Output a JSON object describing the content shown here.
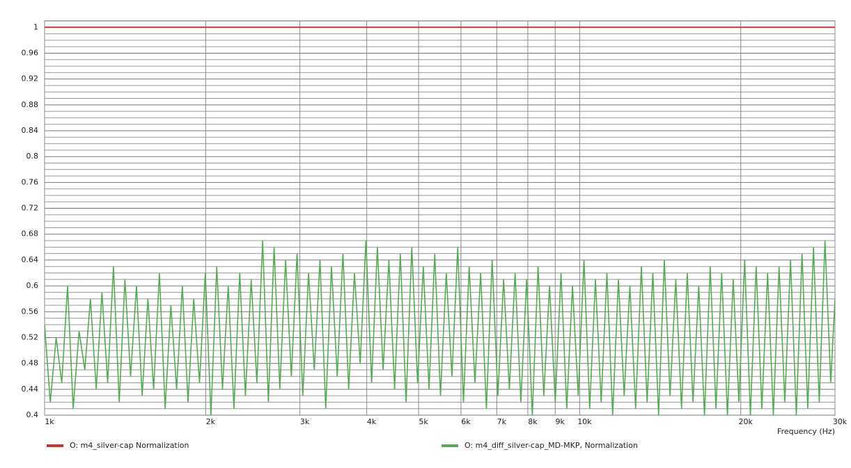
{
  "chart_data": {
    "type": "line",
    "x_label": "Frequency  (Hz)",
    "x_log": true,
    "grid": true,
    "legend": "bottom",
    "xlim": [
      1000,
      30000
    ],
    "ylim": [
      0.4,
      1.01
    ],
    "xticks": [
      {
        "value": 1000,
        "label": "1k"
      },
      {
        "value": 2000,
        "label": "2k"
      },
      {
        "value": 3000,
        "label": "3k"
      },
      {
        "value": 4000,
        "label": "4k"
      },
      {
        "value": 5000,
        "label": "5k"
      },
      {
        "value": 6000,
        "label": "6k"
      },
      {
        "value": 7000,
        "label": "7k"
      },
      {
        "value": 8000,
        "label": "8k"
      },
      {
        "value": 9000,
        "label": "9k"
      },
      {
        "value": 10000,
        "label": "10k"
      },
      {
        "value": 20000,
        "label": "20k"
      },
      {
        "value": 30000,
        "label": "30k"
      }
    ],
    "yticks": [
      0.4,
      0.44,
      0.48,
      0.52,
      0.56,
      0.6,
      0.64,
      0.68,
      0.72,
      0.76,
      0.8,
      0.84,
      0.88,
      0.92,
      0.96,
      1
    ],
    "series": [
      {
        "name": "O: m4_silver-cap Normalization",
        "color": "#cc3333",
        "x": [
          1000,
          30000
        ],
        "values": [
          1,
          1
        ]
      },
      {
        "name": "O: m4_diff_silver-cap_MD-MKP, Normalization",
        "color": "#55aa55",
        "x": [
          1000,
          1025,
          1051,
          1077,
          1104,
          1131,
          1160,
          1189,
          1218,
          1249,
          1280,
          1312,
          1345,
          1379,
          1413,
          1448,
          1485,
          1522,
          1560,
          1599,
          1639,
          1680,
          1722,
          1765,
          1809,
          1854,
          1900,
          1948,
          1997,
          2046,
          2098,
          2150,
          2204,
          2259,
          2316,
          2373,
          2433,
          2493,
          2556,
          2620,
          2685,
          2752,
          2821,
          2892,
          2964,
          3038,
          3114,
          3192,
          3271,
          3353,
          3437,
          3523,
          3611,
          3701,
          3794,
          3889,
          3986,
          4085,
          4187,
          4292,
          4400,
          4510,
          4622,
          4738,
          4856,
          4978,
          5102,
          5230,
          5360,
          5494,
          5632,
          5772,
          5917,
          6065,
          6216,
          6372,
          6531,
          6694,
          6862,
          7033,
          7209,
          7389,
          7574,
          7764,
          7958,
          8157,
          8360,
          8569,
          8784,
          9003,
          9228,
          9459,
          9696,
          9938,
          10187,
          10441,
          10702,
          10970,
          11244,
          11525,
          11814,
          12109,
          12412,
          12722,
          13040,
          13366,
          13700,
          14043,
          14394,
          14754,
          15123,
          15501,
          15888,
          16285,
          16693,
          17110,
          17538,
          17976,
          18425,
          18886,
          19358,
          19842,
          20338,
          20847,
          21368,
          21902,
          22450,
          23011,
          23586,
          24176,
          24780,
          25400,
          26035,
          26685,
          27352,
          28036,
          28737,
          29456,
          30000
        ],
        "values": [
          0.54,
          0.42,
          0.52,
          0.45,
          0.6,
          0.41,
          0.53,
          0.47,
          0.58,
          0.44,
          0.59,
          0.45,
          0.63,
          0.42,
          0.61,
          0.46,
          0.6,
          0.43,
          0.58,
          0.44,
          0.62,
          0.41,
          0.57,
          0.44,
          0.6,
          0.42,
          0.58,
          0.45,
          0.62,
          0.4,
          0.63,
          0.44,
          0.6,
          0.41,
          0.62,
          0.43,
          0.61,
          0.45,
          0.67,
          0.42,
          0.66,
          0.44,
          0.64,
          0.46,
          0.65,
          0.43,
          0.62,
          0.47,
          0.64,
          0.41,
          0.63,
          0.46,
          0.65,
          0.44,
          0.62,
          0.48,
          0.67,
          0.45,
          0.66,
          0.47,
          0.64,
          0.44,
          0.65,
          0.42,
          0.66,
          0.45,
          0.63,
          0.44,
          0.65,
          0.43,
          0.62,
          0.46,
          0.66,
          0.42,
          0.63,
          0.45,
          0.62,
          0.41,
          0.64,
          0.43,
          0.61,
          0.44,
          0.62,
          0.42,
          0.61,
          0.4,
          0.63,
          0.43,
          0.6,
          0.42,
          0.62,
          0.41,
          0.6,
          0.43,
          0.64,
          0.41,
          0.61,
          0.42,
          0.62,
          0.4,
          0.61,
          0.43,
          0.6,
          0.41,
          0.63,
          0.42,
          0.62,
          0.4,
          0.64,
          0.43,
          0.61,
          0.41,
          0.62,
          0.42,
          0.6,
          0.4,
          0.63,
          0.41,
          0.62,
          0.4,
          0.61,
          0.42,
          0.64,
          0.4,
          0.63,
          0.41,
          0.62,
          0.4,
          0.63,
          0.42,
          0.64,
          0.4,
          0.65,
          0.41,
          0.66,
          0.42,
          0.67,
          0.45,
          0.58
        ]
      }
    ]
  }
}
